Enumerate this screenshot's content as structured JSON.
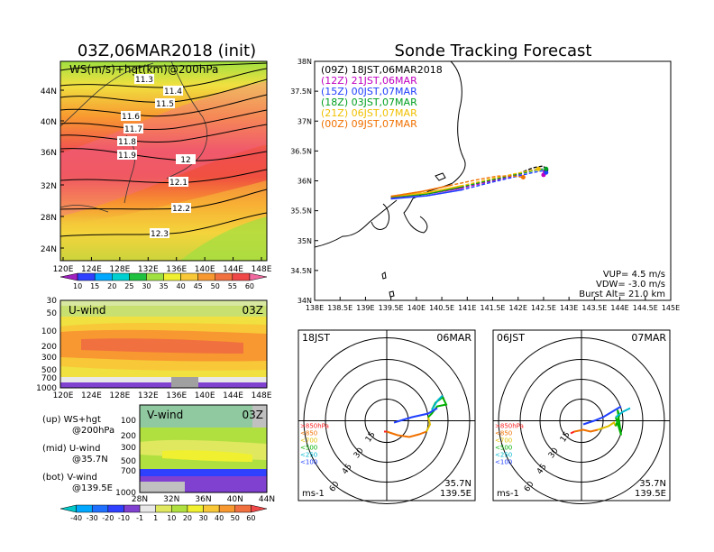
{
  "left_title": "03Z,06MAR2018 (init)",
  "right_title": "Sonde Tracking Forecast",
  "map": {
    "label": "WS(m/s)+hgt(km)@200hPa",
    "lat_ticks": [
      "44N",
      "40N",
      "36N",
      "32N",
      "28N",
      "24N"
    ],
    "lon_ticks": [
      "120E",
      "124E",
      "128E",
      "132E",
      "136E",
      "140E",
      "144E",
      "148E"
    ],
    "contour_labels": [
      "11.3",
      "11.4",
      "11.5",
      "11.6",
      "11.7",
      "11.8",
      "11.9",
      "12",
      "12.1",
      "12.2",
      "12.3"
    ],
    "colorbar_ticks": [
      "10",
      "15",
      "20",
      "25",
      "30",
      "35",
      "40",
      "45",
      "50",
      "55",
      "60"
    ],
    "colorbar_colors": [
      "#a020c0",
      "#3040ff",
      "#00a8ff",
      "#00d0d0",
      "#20c040",
      "#a0e040",
      "#f0f030",
      "#f8c838",
      "#f89830",
      "#f07040",
      "#f04848",
      "#f06aa0"
    ]
  },
  "u_panel": {
    "label": "U-wind",
    "time": "03Z",
    "levels": [
      "30",
      "50",
      "100",
      "200",
      "300",
      "500",
      "700",
      "1000"
    ],
    "lon_ticks": [
      "120E",
      "124E",
      "128E",
      "132E",
      "136E",
      "140E",
      "144E",
      "148E"
    ]
  },
  "v_panel": {
    "label": "V-wind",
    "time": "03Z",
    "levels": [
      "100",
      "200",
      "300",
      "500",
      "700",
      "1000"
    ],
    "lat_ticks": [
      "28N",
      "32N",
      "36N",
      "40N",
      "44N"
    ]
  },
  "legend_text": {
    "up": "(up) WS+hgt",
    "up2": "@200hPa",
    "mid": "(mid) U-wind",
    "mid2": "@35.7N",
    "bot": "(bot) V-wind",
    "bot2": "@139.5E"
  },
  "bottom_colorbar": {
    "ticks": [
      "-40",
      "-30",
      "-20",
      "-10",
      "-1",
      "1",
      "10",
      "20",
      "30",
      "40",
      "50",
      "60"
    ],
    "colors": [
      "#00c8c8",
      "#00a8ff",
      "#2070ff",
      "#3040ff",
      "#8040d0",
      "#e8e8e8",
      "#e0e860",
      "#b0e040",
      "#f0f030",
      "#f8c838",
      "#f89830",
      "#f07040",
      "#f04848"
    ]
  },
  "chart_data": {
    "type": "line",
    "title": "Sonde Tracking Forecast",
    "xlim": [
      "138E",
      "145E"
    ],
    "ylim": [
      "34N",
      "38N"
    ],
    "x_ticks": [
      "138E",
      "138.5E",
      "139E",
      "139.5E",
      "140E",
      "140.5E",
      "141E",
      "141.5E",
      "142E",
      "142.5E",
      "143E",
      "143.5E",
      "144E",
      "144.5E",
      "145E"
    ],
    "y_ticks": [
      "38N",
      "37.5N",
      "37N",
      "36.5N",
      "36N",
      "35.5N",
      "35N",
      "34.5N",
      "34N"
    ],
    "legend_position": "top-left",
    "series": [
      {
        "name": "(09Z) 18JST,06MAR2018",
        "color": "#000000",
        "x": [
          139.5,
          140.2,
          140.9,
          141.5,
          142.0,
          142.3,
          142.5,
          142.55
        ],
        "y": [
          35.72,
          35.8,
          35.9,
          36.02,
          36.12,
          36.22,
          36.25,
          36.18
        ]
      },
      {
        "name": "(12Z) 21JST,06MAR",
        "color": "#c000c0",
        "x": [
          139.5,
          140.2,
          140.9,
          141.5,
          142.0,
          142.3,
          142.5,
          142.5
        ],
        "y": [
          35.72,
          35.78,
          35.88,
          36.0,
          36.1,
          36.18,
          36.2,
          36.1
        ]
      },
      {
        "name": "(15Z) 00JST,07MAR",
        "color": "#2040ff",
        "x": [
          139.5,
          140.2,
          140.9,
          141.5,
          142.0,
          142.3,
          142.5,
          142.55
        ],
        "y": [
          35.7,
          35.75,
          35.85,
          35.98,
          36.08,
          36.14,
          36.17,
          36.14
        ]
      },
      {
        "name": "(18Z) 03JST,07MAR",
        "color": "#00a020",
        "x": [
          139.5,
          140.2,
          140.9,
          141.5,
          142.0,
          142.35,
          142.55
        ],
        "y": [
          35.73,
          35.78,
          35.9,
          36.02,
          36.11,
          36.18,
          36.2
        ]
      },
      {
        "name": "(21Z) 06JST,07MAR",
        "color": "#f0c000",
        "x": [
          139.5,
          140.2,
          140.9,
          141.5,
          142.0,
          142.4
        ],
        "y": [
          35.74,
          35.8,
          35.92,
          36.04,
          36.13,
          36.2
        ]
      },
      {
        "name": "(00Z) 09JST,07MAR",
        "color": "#f07000",
        "x": [
          139.5,
          140.1,
          140.7,
          141.2,
          141.6,
          141.9,
          142.1
        ],
        "y": [
          35.74,
          35.82,
          35.93,
          36.02,
          36.08,
          36.08,
          36.06
        ]
      }
    ],
    "annotations": [
      "VUP= 4.5 m/s",
      "VDW= -3.0 m/s",
      "Burst Alt= 21.0 km"
    ]
  },
  "hodographs": [
    {
      "time": "18JST",
      "date": "06MAR",
      "loc1": "35.7N",
      "loc2": "139.5E",
      "unit": "ms-1",
      "ring_labels": [
        "15",
        "30",
        "45",
        "60"
      ],
      "level_labels": [
        ">850hPa",
        "<850",
        "<700",
        "<500",
        "<250",
        "<100"
      ],
      "level_colors": [
        "#ff2020",
        "#f07000",
        "#e0c000",
        "#00b000",
        "#00b8d0",
        "#2040ff"
      ]
    },
    {
      "time": "06JST",
      "date": "07MAR",
      "loc1": "35.7N",
      "loc2": "139.5E",
      "unit": "ms-1",
      "ring_labels": [
        "15",
        "30",
        "45",
        "60"
      ],
      "level_labels": [
        ">850hPa",
        "<850",
        "<700",
        "<500",
        "<250",
        "<100"
      ],
      "level_colors": [
        "#ff2020",
        "#f07000",
        "#e0c000",
        "#00b000",
        "#00b8d0",
        "#2040ff"
      ]
    }
  ]
}
